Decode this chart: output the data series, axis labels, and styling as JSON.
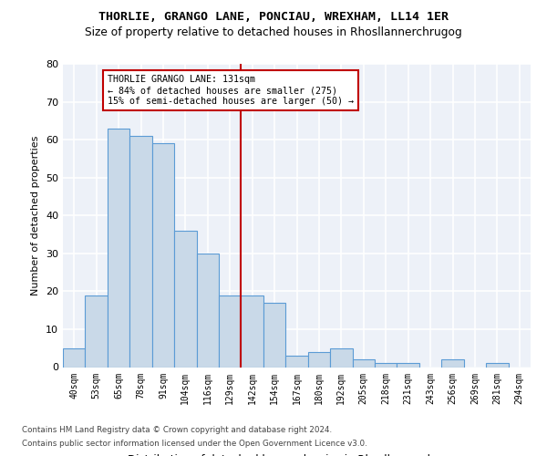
{
  "title1": "THORLIE, GRANGO LANE, PONCIAU, WREXHAM, LL14 1ER",
  "title2": "Size of property relative to detached houses in Rhosllannerchrugog",
  "xlabel": "Distribution of detached houses by size in Rhosllannerchrugog",
  "ylabel": "Number of detached properties",
  "categories": [
    "40sqm",
    "53sqm",
    "65sqm",
    "78sqm",
    "91sqm",
    "104sqm",
    "116sqm",
    "129sqm",
    "142sqm",
    "154sqm",
    "167sqm",
    "180sqm",
    "192sqm",
    "205sqm",
    "218sqm",
    "231sqm",
    "243sqm",
    "256sqm",
    "269sqm",
    "281sqm",
    "294sqm"
  ],
  "values": [
    5,
    19,
    63,
    61,
    59,
    36,
    30,
    19,
    19,
    17,
    3,
    4,
    5,
    2,
    1,
    1,
    0,
    2,
    0,
    1,
    0
  ],
  "bar_color": "#c9d9e8",
  "bar_edge_color": "#5b9bd5",
  "vline_color": "#c00000",
  "vline_x": 7.5,
  "annotation_text": "THORLIE GRANGO LANE: 131sqm\n← 84% of detached houses are smaller (275)\n15% of semi-detached houses are larger (50) →",
  "annotation_box_edge_color": "#c00000",
  "ylim": [
    0,
    80
  ],
  "yticks": [
    0,
    10,
    20,
    30,
    40,
    50,
    60,
    70,
    80
  ],
  "footnote1": "Contains HM Land Registry data © Crown copyright and database right 2024.",
  "footnote2": "Contains public sector information licensed under the Open Government Licence v3.0.",
  "bg_color": "#edf1f8",
  "grid_color": "white"
}
